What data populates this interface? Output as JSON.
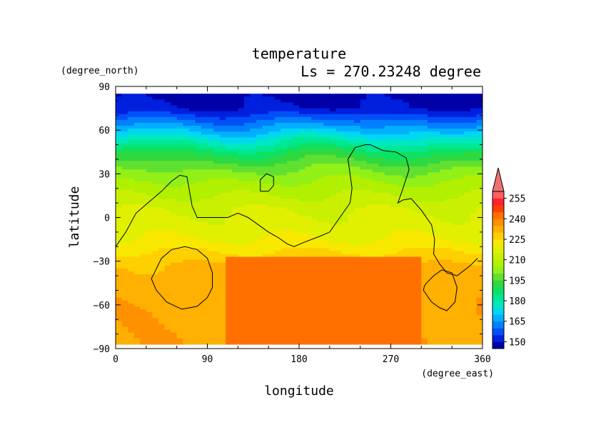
{
  "chart_data": {
    "type": "heatmap",
    "title": "temperature",
    "subtitle": "Ls = 270.23248 degree",
    "xlabel": "longitude",
    "ylabel": "latitude",
    "x_unit": "(degree_east)",
    "y_unit": "(degree_north)",
    "xlim": [
      0,
      360
    ],
    "ylim": [
      -90,
      90
    ],
    "data_lat_range": [
      -87,
      85
    ],
    "xticks": [
      0,
      90,
      180,
      270,
      360
    ],
    "yticks": [
      90,
      60,
      30,
      0,
      -30,
      -60,
      -90
    ],
    "xtick_labels": [
      "0",
      "90",
      "180",
      "270",
      "360"
    ],
    "ytick_labels": [
      "90",
      "60",
      "30",
      "0",
      "−30",
      "−60",
      "−90"
    ],
    "colorbar": {
      "levels": [
        145,
        150,
        155,
        160,
        165,
        170,
        175,
        180,
        185,
        190,
        195,
        200,
        205,
        210,
        215,
        220,
        225,
        230,
        235,
        240,
        245,
        250,
        255,
        260
      ],
      "labels": [
        "150",
        "165",
        "180",
        "195",
        "210",
        "225",
        "240",
        "255"
      ],
      "label_values": [
        150,
        165,
        180,
        195,
        210,
        225,
        240,
        255
      ],
      "colors": [
        "#0000a8",
        "#0020e0",
        "#0050f8",
        "#0080ff",
        "#00b0ff",
        "#00d8f0",
        "#00e8c0",
        "#00e890",
        "#10e060",
        "#30d840",
        "#60e030",
        "#90f018",
        "#b0f000",
        "#c8f000",
        "#e0f000",
        "#f8e800",
        "#ffd000",
        "#ffb000",
        "#ff9000",
        "#ff7000",
        "#ff4000",
        "#ff2030",
        "#ff6060"
      ],
      "extend": "max"
    },
    "profile_lat": [
      85,
      75,
      65,
      55,
      45,
      35,
      25,
      15,
      5,
      -5,
      -15,
      -25,
      -35,
      -45,
      -55,
      -65,
      -75,
      -85
    ],
    "profile_temp": [
      148,
      150,
      162,
      175,
      188,
      198,
      205,
      210,
      215,
      217,
      220,
      226,
      231,
      233,
      233,
      234,
      234,
      234
    ],
    "warm_region": {
      "lon_range": [
        110,
        300
      ],
      "lat_range": [
        -87,
        -30
      ],
      "temp": 240
    },
    "contour_lines": [
      {
        "lon": [
          0,
          10,
          20,
          30,
          45,
          55,
          63,
          70,
          72,
          75,
          80,
          95,
          110,
          120,
          130,
          140,
          150,
          160,
          168,
          175,
          185,
          200,
          210,
          220,
          230,
          232,
          230,
          228,
          235,
          245,
          250,
          262,
          275,
          285,
          288,
          282,
          277,
          282,
          290,
          300,
          310,
          313,
          312,
          318,
          325,
          335,
          348,
          355
        ],
        "lat": [
          -20,
          -10,
          3,
          9,
          18,
          25,
          29,
          28,
          20,
          8,
          0,
          0,
          0,
          3,
          0,
          -5,
          -10,
          -14,
          -18,
          -20,
          -17,
          -13,
          -10,
          0,
          10,
          20,
          30,
          40,
          48,
          50,
          50,
          46,
          45,
          41,
          33,
          20,
          10,
          12,
          13,
          5,
          -5,
          -15,
          -25,
          -32,
          -38,
          -40,
          -33,
          -28
        ]
      },
      {
        "lon": [
          142,
          150,
          155,
          155,
          148,
          142,
          142
        ],
        "lat": [
          18,
          18,
          22,
          28,
          30,
          26,
          18
        ]
      },
      {
        "lon": [
          40,
          45,
          55,
          68,
          80,
          90,
          95,
          95,
          90,
          80,
          65,
          50,
          40,
          35,
          38,
          40
        ],
        "lat": [
          -35,
          -28,
          -22,
          -20,
          -22,
          -28,
          -38,
          -48,
          -55,
          -61,
          -63,
          -58,
          -50,
          -42,
          -38,
          -35
        ]
      },
      {
        "lon": [
          305,
          312,
          320,
          330,
          335,
          333,
          325,
          318,
          310,
          302,
          303,
          305
        ],
        "lat": [
          -45,
          -40,
          -36,
          -38,
          -48,
          -58,
          -64,
          -62,
          -58,
          -50,
          -47,
          -45
        ]
      }
    ]
  }
}
